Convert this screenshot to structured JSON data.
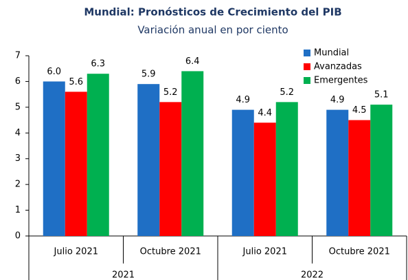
{
  "chart_data": {
    "type": "bar",
    "title": "Mundial: Pronósticos de Crecimiento del PIB",
    "subtitle": "Variación anual en por ciento",
    "categories": [
      "Julio 2021",
      "Octubre 2021",
      "Julio 2021",
      "Octubre 2021"
    ],
    "category_groups": [
      "2021",
      "2022"
    ],
    "series": [
      {
        "name": "Mundial",
        "color": "#1f6fc5",
        "values": [
          6.0,
          5.9,
          4.9,
          4.9
        ],
        "value_labels": [
          "6.0",
          "5.9",
          "4.9",
          "4.9"
        ]
      },
      {
        "name": "Avanzadas",
        "color": "#ff0000",
        "values": [
          5.6,
          5.2,
          4.4,
          4.5
        ],
        "value_labels": [
          "5.6",
          "5.2",
          "4.4",
          "4.5"
        ]
      },
      {
        "name": "Emergentes",
        "color": "#00b050",
        "values": [
          6.3,
          6.4,
          5.2,
          5.1
        ],
        "value_labels": [
          "6.3",
          "6.4",
          "5.2",
          "5.1"
        ]
      }
    ],
    "ylim": [
      0,
      7
    ],
    "yticks": [
      0,
      1,
      2,
      3,
      4,
      5,
      6,
      7
    ],
    "grid": false,
    "legend": "top-right"
  }
}
